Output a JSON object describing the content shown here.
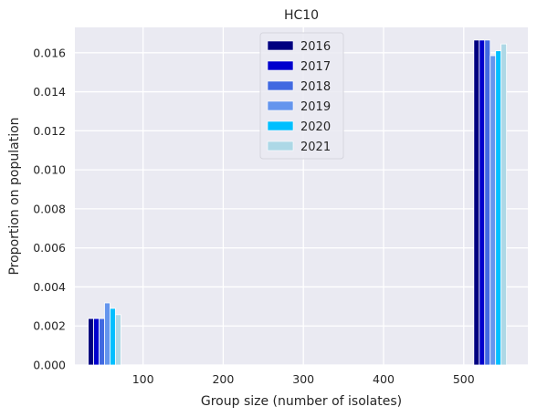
{
  "chart_data": {
    "type": "bar",
    "title": "HC10",
    "xlabel": "Group size (number of isolates)",
    "ylabel": "Proportion on population",
    "xlim": [
      15,
      580
    ],
    "ylim": [
      0,
      0.0173
    ],
    "xticks": [
      100,
      200,
      300,
      400,
      500
    ],
    "xtick_labels": [
      "100",
      "200",
      "300",
      "400",
      "500"
    ],
    "yticks": [
      0,
      0.002,
      0.004,
      0.006,
      0.008,
      0.01,
      0.012,
      0.014,
      0.016
    ],
    "ytick_labels": [
      "0.000",
      "0.002",
      "0.004",
      "0.006",
      "0.008",
      "0.010",
      "0.012",
      "0.014",
      "0.016"
    ],
    "grid": true,
    "legend_position": "top-center",
    "bar_width": 6.8,
    "group_centers": [
      52,
      533
    ],
    "series": [
      {
        "name": "2016",
        "color": "#000080",
        "values": [
          0.00238,
          0.01665
        ]
      },
      {
        "name": "2017",
        "color": "#0000cd",
        "values": [
          0.00238,
          0.01665
        ]
      },
      {
        "name": "2018",
        "color": "#4169e1",
        "values": [
          0.00238,
          0.01665
        ]
      },
      {
        "name": "2019",
        "color": "#6495ed",
        "values": [
          0.00318,
          0.01585
        ]
      },
      {
        "name": "2020",
        "color": "#00bfff",
        "values": [
          0.0029,
          0.0161
        ]
      },
      {
        "name": "2021",
        "color": "#add8e6",
        "values": [
          0.00258,
          0.01645
        ]
      }
    ]
  }
}
